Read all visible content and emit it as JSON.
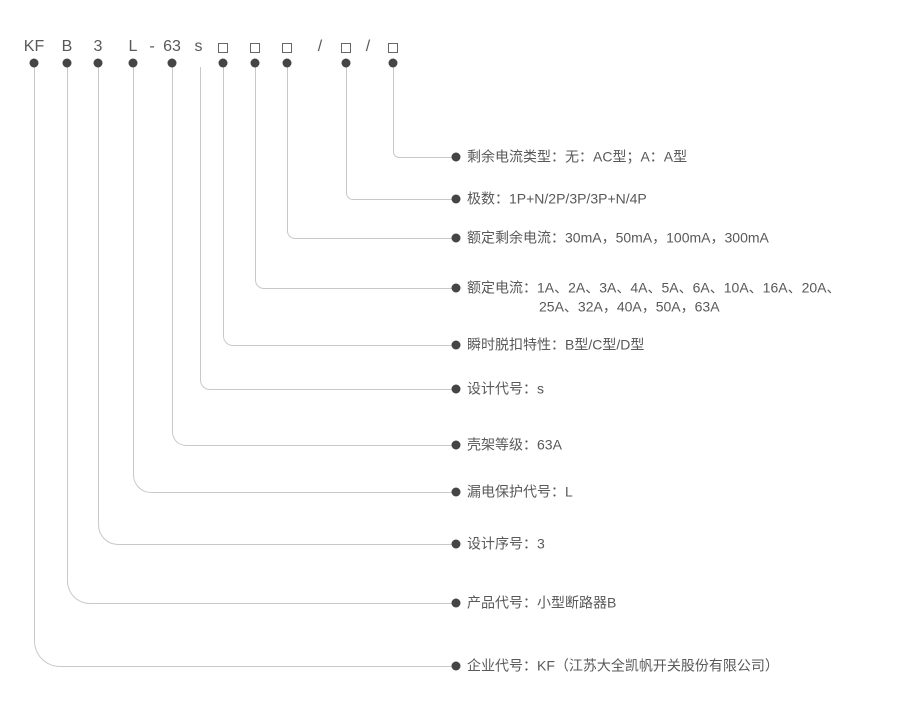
{
  "colors": {
    "text": "#595959",
    "dot": "#454545",
    "line": "#c9c9c9",
    "box_border": "#666666",
    "background": "#ffffff"
  },
  "model_code": {
    "segments": [
      {
        "kind": "code",
        "text": "KF"
      },
      {
        "kind": "code",
        "text": "B"
      },
      {
        "kind": "code",
        "text": "3"
      },
      {
        "kind": "code",
        "text": "L"
      },
      {
        "kind": "separator",
        "text": "-"
      },
      {
        "kind": "code",
        "text": "63"
      },
      {
        "kind": "code",
        "text": "s"
      },
      {
        "kind": "box",
        "text": ""
      },
      {
        "kind": "box",
        "text": ""
      },
      {
        "kind": "box",
        "text": ""
      },
      {
        "kind": "separator",
        "text": "/"
      },
      {
        "kind": "box",
        "text": ""
      },
      {
        "kind": "separator",
        "text": "/"
      },
      {
        "kind": "box",
        "text": ""
      }
    ]
  },
  "entries": [
    {
      "segment": "box-5",
      "dot": true,
      "label": "剩余电流类型：无：AC型；A：A型"
    },
    {
      "segment": "box-4",
      "dot": true,
      "label": "极数：1P+N/2P/3P/3P+N/4P"
    },
    {
      "segment": "box-3",
      "dot": true,
      "label": "额定剩余电流：30mA，50mA，100mA，300mA"
    },
    {
      "segment": "box-2",
      "dot": true,
      "label": "额定电流：1A、2A、3A、4A、5A、6A、10A、16A、20A、",
      "label_line2": "25A、32A，40A，50A，63A"
    },
    {
      "segment": "box-1",
      "dot": true,
      "label": "瞬时脱扣特性：B型/C型/D型"
    },
    {
      "segment": "s",
      "dot": false,
      "label": "设计代号：s"
    },
    {
      "segment": "63",
      "dot": true,
      "label": "壳架等级：63A"
    },
    {
      "segment": "L",
      "dot": true,
      "label": "漏电保护代号：L"
    },
    {
      "segment": "3",
      "dot": true,
      "label": "设计序号：3"
    },
    {
      "segment": "B",
      "dot": true,
      "label": "产品代号：小型断路器B"
    },
    {
      "segment": "KF",
      "dot": true,
      "label": "企业代号：KF（江苏大全凯帆开关股份有限公司）"
    }
  ]
}
